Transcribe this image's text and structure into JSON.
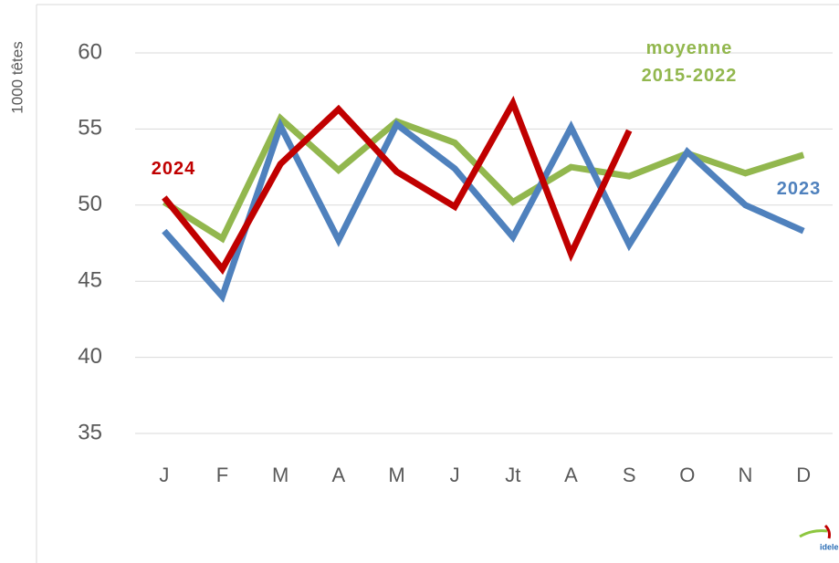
{
  "chart_data": {
    "type": "line",
    "y_axis_label": "1000 têtes",
    "categories": [
      "J",
      "F",
      "M",
      "A",
      "M",
      "J",
      "Jt",
      "A",
      "S",
      "O",
      "N",
      "D"
    ],
    "series": [
      {
        "name": "moyenne 2015-2022",
        "color": "#92b74e",
        "values": [
          50.2,
          47.8,
          55.7,
          52.3,
          55.5,
          54.1,
          50.2,
          52.5,
          51.9,
          53.4,
          52.1,
          53.3
        ]
      },
      {
        "name": "2023",
        "color": "#4f81bd",
        "values": [
          48.3,
          44.0,
          55.2,
          47.7,
          55.3,
          52.4,
          47.9,
          55.1,
          47.4,
          53.5,
          50.0,
          48.3
        ]
      },
      {
        "name": "2024",
        "color": "#c00000",
        "values": [
          50.5,
          45.8,
          52.7,
          56.3,
          52.2,
          49.9,
          56.7,
          46.8,
          54.9,
          null,
          null,
          null
        ]
      }
    ],
    "ylim": [
      35,
      60
    ],
    "yticks": [
      35,
      40,
      45,
      50,
      55,
      60
    ],
    "grid": true
  }
}
